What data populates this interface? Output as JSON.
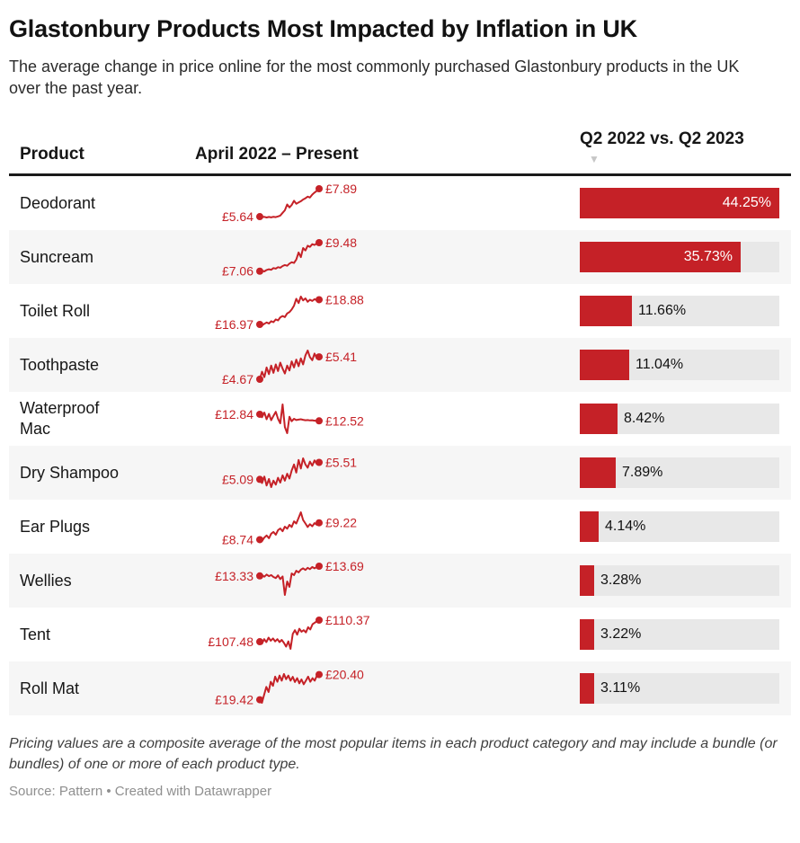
{
  "header": {
    "title": "Glastonbury Products Most Impacted by Inflation in UK",
    "subtitle": "The average change in price online for the most commonly purchased Glastonbury products in the UK over the past year."
  },
  "table": {
    "columns": {
      "product": "Product",
      "spark": "April 2022 – Present",
      "change": "Q2 2022 vs. Q2 2023"
    },
    "sort_indicator": "▼",
    "bar_max": 44.25,
    "rows": [
      {
        "product": "Deodorant",
        "start_label": "£5.64",
        "end_label": "£7.89",
        "change_label": "44.25%",
        "pct": 44.25,
        "spark": [
          5.64,
          5.6,
          5.62,
          5.57,
          5.61,
          5.58,
          5.63,
          5.6,
          5.66,
          5.72,
          5.95,
          6.15,
          6.62,
          6.38,
          6.58,
          6.92,
          6.68,
          6.78,
          6.88,
          7.02,
          7.12,
          7.25,
          7.18,
          7.42,
          7.58,
          7.72,
          7.89
        ]
      },
      {
        "product": "Suncream",
        "start_label": "£7.06",
        "end_label": "£9.48",
        "change_label": "35.73%",
        "pct": 35.73,
        "spark": [
          7.06,
          7.1,
          7.04,
          7.16,
          7.22,
          7.18,
          7.32,
          7.28,
          7.4,
          7.35,
          7.5,
          7.58,
          7.52,
          7.7,
          7.82,
          7.76,
          8.05,
          8.65,
          8.25,
          9.02,
          8.82,
          9.22,
          9.12,
          9.35,
          9.28,
          9.42,
          9.48
        ]
      },
      {
        "product": "Toilet Roll",
        "start_label": "£16.97",
        "end_label": "£18.88",
        "change_label": "11.66%",
        "pct": 11.66,
        "spark": [
          16.97,
          16.9,
          17.02,
          17.12,
          17.04,
          17.22,
          17.14,
          17.36,
          17.28,
          17.52,
          17.62,
          17.54,
          17.82,
          17.92,
          18.12,
          18.42,
          18.95,
          18.62,
          19.12,
          18.82,
          18.98,
          18.72,
          18.88,
          18.78,
          18.92,
          18.82,
          18.88
        ]
      },
      {
        "product": "Toothpaste",
        "start_label": "£4.67",
        "end_label": "£5.41",
        "change_label": "11.04%",
        "pct": 11.04,
        "spark": [
          4.67,
          4.92,
          4.74,
          5.06,
          4.84,
          5.12,
          4.88,
          5.16,
          4.94,
          5.22,
          5.02,
          4.86,
          5.12,
          4.96,
          5.26,
          5.06,
          5.32,
          5.1,
          5.36,
          5.16,
          5.46,
          5.62,
          5.4,
          5.3,
          5.52,
          5.36,
          5.41
        ]
      },
      {
        "product": "Waterproof Mac",
        "start_label": "£12.84",
        "end_label": "£12.52",
        "change_label": "8.42%",
        "pct": 8.42,
        "spark": [
          12.84,
          12.7,
          12.92,
          12.6,
          12.86,
          12.55,
          12.76,
          12.96,
          12.62,
          12.4,
          13.32,
          12.22,
          11.92,
          12.72,
          12.5,
          12.62,
          12.56,
          12.58,
          12.6,
          12.57,
          12.55,
          12.56,
          12.54,
          12.55,
          12.53,
          12.53,
          12.52
        ]
      },
      {
        "product": "Dry Shampoo",
        "start_label": "£5.09",
        "end_label": "£5.51",
        "change_label": "7.89%",
        "pct": 7.89,
        "spark": [
          5.09,
          5.0,
          5.16,
          4.94,
          5.1,
          4.9,
          5.06,
          4.96,
          5.13,
          5.01,
          5.19,
          5.06,
          5.23,
          5.11,
          5.31,
          5.46,
          5.26,
          5.57,
          5.36,
          5.61,
          5.46,
          5.38,
          5.53,
          5.43,
          5.56,
          5.47,
          5.51
        ]
      },
      {
        "product": "Ear Plugs",
        "start_label": "£8.74",
        "end_label": "£9.22",
        "change_label": "4.14%",
        "pct": 4.14,
        "spark": [
          8.74,
          8.7,
          8.8,
          8.86,
          8.78,
          8.91,
          8.96,
          8.88,
          9.01,
          9.06,
          8.98,
          9.11,
          9.05,
          9.16,
          9.1,
          9.26,
          9.2,
          9.36,
          9.52,
          9.3,
          9.2,
          9.1,
          9.18,
          9.12,
          9.21,
          9.16,
          9.22
        ]
      },
      {
        "product": "Wellies",
        "start_label": "£13.33",
        "end_label": "£13.69",
        "change_label": "3.28%",
        "pct": 3.28,
        "spark": [
          13.33,
          13.36,
          13.3,
          13.38,
          13.32,
          13.36,
          13.29,
          13.25,
          13.35,
          13.21,
          13.31,
          12.62,
          13.12,
          12.92,
          13.42,
          13.36,
          13.52,
          13.46,
          13.56,
          13.61,
          13.55,
          13.63,
          13.58,
          13.66,
          13.61,
          13.66,
          13.69
        ]
      },
      {
        "product": "Tent",
        "start_label": "£107.48",
        "end_label": "£110.37",
        "change_label": "3.22%",
        "pct": 3.22,
        "spark": [
          107.48,
          107.2,
          107.82,
          107.42,
          108.02,
          107.62,
          107.92,
          107.52,
          107.82,
          107.42,
          107.72,
          107.32,
          106.82,
          107.52,
          106.52,
          108.52,
          109.02,
          108.42,
          109.22,
          108.82,
          109.02,
          108.72,
          109.42,
          109.12,
          109.82,
          110.02,
          110.22,
          110.37
        ]
      },
      {
        "product": "Roll Mat",
        "start_label": "£19.42",
        "end_label": "£20.40",
        "change_label": "3.11%",
        "pct": 3.11,
        "spark": [
          19.42,
          19.3,
          19.62,
          19.92,
          19.72,
          20.12,
          19.96,
          20.32,
          20.12,
          20.36,
          20.16,
          20.42,
          20.22,
          20.36,
          20.16,
          20.31,
          20.11,
          20.26,
          20.06,
          20.21,
          20.02,
          20.16,
          20.32,
          20.12,
          20.26,
          20.16,
          20.36,
          20.4
        ]
      }
    ]
  },
  "footer": {
    "note": "Pricing values are a composite average of the most popular items in each product category and may include a bundle (or bundles) of one or more of each product type.",
    "source": "Source: Pattern • Created with Datawrapper"
  },
  "colors": {
    "accent_red": "#c52127",
    "bar_track": "#e8e8e8",
    "alt_row_bg": "#f6f6f6",
    "header_rule": "#1a1a1a",
    "sort_arrow": "#c6c6c6",
    "value_inside": "#ffffff",
    "value_outside": "#111111",
    "source_text": "#8f8f8f"
  },
  "chart_data": {
    "type": "table",
    "title": "Glastonbury Products Most Impacted by Inflation in UK",
    "subtitle": "The average change in price online for the most commonly purchased Glastonbury products in the UK over the past year.",
    "columns": [
      "Product",
      "April 2022 – Present",
      "Q2 2022 vs. Q2 2023"
    ],
    "sorted_by": "Q2 2022 vs. Q2 2023 descending",
    "bar_axis_max_pct": 44.25,
    "embedded_charts": [
      "sparkline price series per row",
      "horizontal bar of pct change per row"
    ],
    "rows": [
      {
        "product": "Deodorant",
        "price_april_2022_gbp": 5.64,
        "price_present_gbp": 7.89,
        "pct_change_q2_2022_vs_q2_2023": 44.25
      },
      {
        "product": "Suncream",
        "price_april_2022_gbp": 7.06,
        "price_present_gbp": 9.48,
        "pct_change_q2_2022_vs_q2_2023": 35.73
      },
      {
        "product": "Toilet Roll",
        "price_april_2022_gbp": 16.97,
        "price_present_gbp": 18.88,
        "pct_change_q2_2022_vs_q2_2023": 11.66
      },
      {
        "product": "Toothpaste",
        "price_april_2022_gbp": 4.67,
        "price_present_gbp": 5.41,
        "pct_change_q2_2022_vs_q2_2023": 11.04
      },
      {
        "product": "Waterproof Mac",
        "price_april_2022_gbp": 12.84,
        "price_present_gbp": 12.52,
        "pct_change_q2_2022_vs_q2_2023": 8.42
      },
      {
        "product": "Dry Shampoo",
        "price_april_2022_gbp": 5.09,
        "price_present_gbp": 5.51,
        "pct_change_q2_2022_vs_q2_2023": 7.89
      },
      {
        "product": "Ear Plugs",
        "price_april_2022_gbp": 8.74,
        "price_present_gbp": 9.22,
        "pct_change_q2_2022_vs_q2_2023": 4.14
      },
      {
        "product": "Wellies",
        "price_april_2022_gbp": 13.33,
        "price_present_gbp": 13.69,
        "pct_change_q2_2022_vs_q2_2023": 3.28
      },
      {
        "product": "Tent",
        "price_april_2022_gbp": 107.48,
        "price_present_gbp": 110.37,
        "pct_change_q2_2022_vs_q2_2023": 3.22
      },
      {
        "product": "Roll Mat",
        "price_april_2022_gbp": 19.42,
        "price_present_gbp": 20.4,
        "pct_change_q2_2022_vs_q2_2023": 3.11
      }
    ]
  }
}
